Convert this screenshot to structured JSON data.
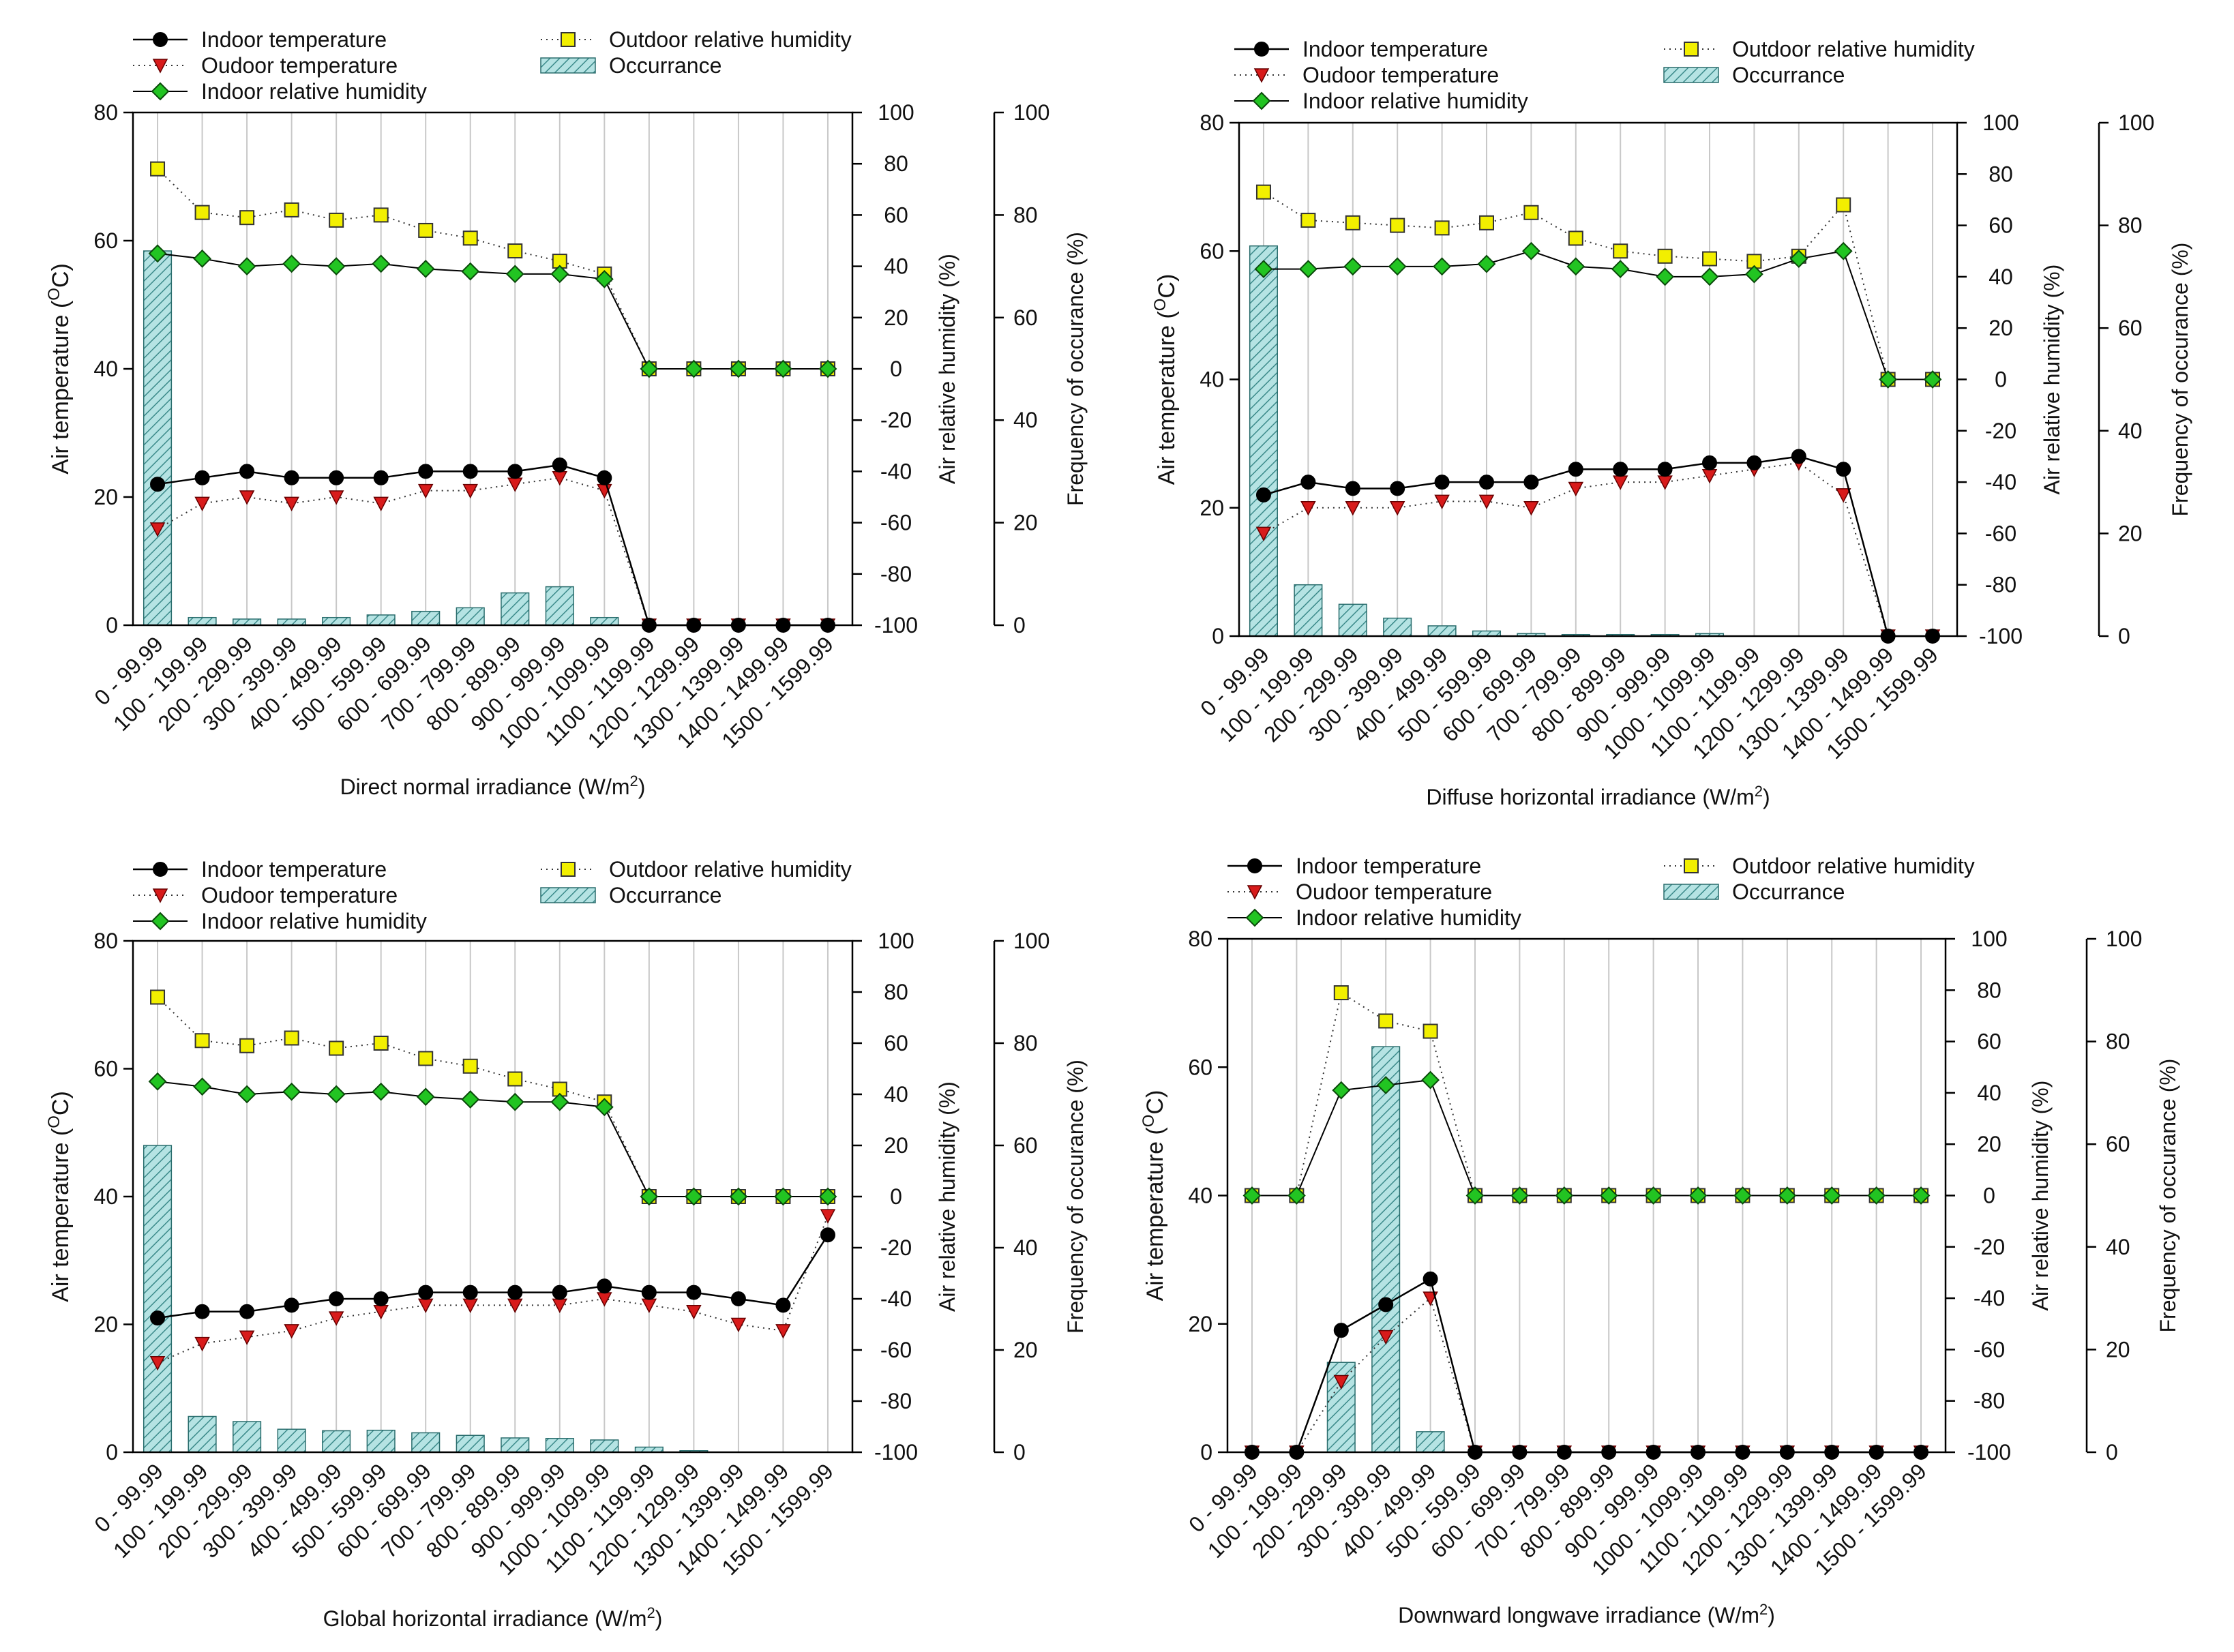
{
  "figure": {
    "legend": {
      "indoor_temp": "Indoor temperature",
      "outdoor_temp": "Oudoor temperature",
      "indoor_rh": "Indoor relative humidity",
      "outdoor_rh": "Outdoor relative humidity",
      "occurrence": "Occurrance"
    },
    "colors": {
      "indoor_temp": "#000000",
      "outdoor_temp": "#d81b1b",
      "indoor_rh": "#22c422",
      "outdoor_rh": "#f2ef00",
      "occurrence": "#b5e3e3",
      "grid": "#c8c8c8"
    }
  },
  "chart_data": [
    {
      "type": "bar",
      "id": "dni",
      "xlabel": "Direct normal irradiance (W/m",
      "xlabel_sup": "2",
      "ylabel_left": "Air temperature (",
      "ylabel_left_sup": "O",
      "ylabel_left_end": "C)",
      "ylabel_mid": "Air relative humidity (%)",
      "ylabel_right": "Frequency of occurance (%)",
      "ylim_temp": [
        0,
        80
      ],
      "ylim_rh": [
        -100,
        100
      ],
      "ylim_freq": [
        0,
        100
      ],
      "ticks_temp": [
        "0",
        "20",
        "40",
        "60",
        "80"
      ],
      "ticks_rh": [
        "-100",
        "-80",
        "-60",
        "-40",
        "-20",
        "0",
        "20",
        "40",
        "60",
        "80",
        "100"
      ],
      "ticks_freq": [
        "0",
        "20",
        "40",
        "60",
        "80",
        "100"
      ],
      "categories": [
        "0 - 99.99",
        "100 - 199.99",
        "200 - 299.99",
        "300 - 399.99",
        "400 - 499.99",
        "500 - 599.99",
        "600 - 699.99",
        "700 - 799.99",
        "800 - 899.99",
        "900 - 999.99",
        "1000 - 1099.99",
        "1100 - 1199.99",
        "1200 - 1299.99",
        "1300 - 1399.99",
        "1400 - 1499.99",
        "1500 - 1599.99"
      ],
      "series": [
        {
          "name": "Indoor temperature",
          "key": "indoor_temp",
          "axis": "temp",
          "values": [
            22,
            23,
            24,
            23,
            23,
            23,
            24,
            24,
            24,
            25,
            23,
            0,
            0,
            0,
            0,
            0
          ]
        },
        {
          "name": "Oudoor temperature",
          "key": "outdoor_temp",
          "axis": "temp",
          "values": [
            15,
            19,
            20,
            19,
            20,
            19,
            21,
            21,
            22,
            23,
            21,
            0,
            0,
            0,
            0,
            0
          ]
        },
        {
          "name": "Indoor relative humidity",
          "key": "indoor_rh",
          "axis": "rh",
          "values": [
            45,
            43,
            40,
            41,
            40,
            41,
            39,
            38,
            37,
            37,
            35,
            0,
            0,
            0,
            0,
            0
          ]
        },
        {
          "name": "Outdoor relative humidity",
          "key": "outdoor_rh",
          "axis": "rh",
          "values": [
            78,
            61,
            59,
            62,
            58,
            60,
            54,
            51,
            46,
            42,
            37,
            0,
            0,
            0,
            0,
            0
          ]
        },
        {
          "name": "Occurrance",
          "key": "occurrence",
          "axis": "freq",
          "values": [
            73,
            1.5,
            1.2,
            1.2,
            1.5,
            2,
            2.7,
            3.4,
            6.3,
            7.5,
            1.5,
            0,
            0,
            0,
            0,
            0
          ]
        }
      ]
    },
    {
      "type": "bar",
      "id": "dhi",
      "xlabel": "Diffuse horizontal irradiance (W/m",
      "xlabel_sup": "2",
      "ylabel_left": "Air temperature (",
      "ylabel_left_sup": "O",
      "ylabel_left_end": "C)",
      "ylabel_mid": "Air relative humidity (%)",
      "ylabel_right": "Frequency of occurance (%)",
      "ylim_temp": [
        0,
        80
      ],
      "ylim_rh": [
        -100,
        100
      ],
      "ylim_freq": [
        0,
        100
      ],
      "ticks_temp": [
        "0",
        "20",
        "40",
        "60",
        "80"
      ],
      "ticks_rh": [
        "-100",
        "-80",
        "-60",
        "-40",
        "-20",
        "0",
        "20",
        "40",
        "60",
        "80",
        "100"
      ],
      "ticks_freq": [
        "0",
        "20",
        "40",
        "60",
        "80",
        "100"
      ],
      "categories": [
        "0 - 99.99",
        "100 - 199.99",
        "200 - 299.99",
        "300 - 399.99",
        "400 - 499.99",
        "500 - 599.99",
        "600 - 699.99",
        "700 - 799.99",
        "800 - 899.99",
        "900 - 999.99",
        "1000 - 1099.99",
        "1100 - 1199.99",
        "1200 - 1299.99",
        "1300 - 1399.99",
        "1400 - 1499.99",
        "1500 - 1599.99"
      ],
      "series": [
        {
          "name": "Indoor temperature",
          "key": "indoor_temp",
          "axis": "temp",
          "values": [
            22,
            24,
            23,
            23,
            24,
            24,
            24,
            26,
            26,
            26,
            27,
            27,
            28,
            26,
            0,
            0
          ]
        },
        {
          "name": "Oudoor temperature",
          "key": "outdoor_temp",
          "axis": "temp",
          "values": [
            16,
            20,
            20,
            20,
            21,
            21,
            20,
            23,
            24,
            24,
            25,
            26,
            27,
            22,
            0,
            0
          ]
        },
        {
          "name": "Indoor relative humidity",
          "key": "indoor_rh",
          "axis": "rh",
          "values": [
            43,
            43,
            44,
            44,
            44,
            45,
            50,
            44,
            43,
            40,
            40,
            41,
            47,
            50,
            0,
            0
          ]
        },
        {
          "name": "Outdoor relative humidity",
          "key": "outdoor_rh",
          "axis": "rh",
          "values": [
            73,
            62,
            61,
            60,
            59,
            61,
            65,
            55,
            50,
            48,
            47,
            46,
            48,
            68,
            0,
            0
          ]
        },
        {
          "name": "Occurrance",
          "key": "occurrence",
          "axis": "freq",
          "values": [
            76,
            10,
            6.2,
            3.5,
            2,
            1,
            0.5,
            0.3,
            0.3,
            0.3,
            0.5,
            0,
            0,
            0,
            0,
            0
          ]
        }
      ]
    },
    {
      "type": "bar",
      "id": "ghi",
      "xlabel": "Global horizontal irradiance (W/m",
      "xlabel_sup": "2",
      "ylabel_left": "Air temperature (",
      "ylabel_left_sup": "O",
      "ylabel_left_end": "C)",
      "ylabel_mid": "Air relative humidity (%)",
      "ylabel_right": "Frequency of occurance (%)",
      "ylim_temp": [
        0,
        80
      ],
      "ylim_rh": [
        -100,
        100
      ],
      "ylim_freq": [
        0,
        100
      ],
      "ticks_temp": [
        "0",
        "20",
        "40",
        "60",
        "80"
      ],
      "ticks_rh": [
        "-100",
        "-80",
        "-60",
        "-40",
        "-20",
        "0",
        "20",
        "40",
        "60",
        "80",
        "100"
      ],
      "ticks_freq": [
        "0",
        "20",
        "40",
        "60",
        "80",
        "100"
      ],
      "categories": [
        "0 - 99.99",
        "100 - 199.99",
        "200 - 299.99",
        "300 - 399.99",
        "400 - 499.99",
        "500 - 599.99",
        "600 - 699.99",
        "700 - 799.99",
        "800 - 899.99",
        "900 - 999.99",
        "1000 - 1099.99",
        "1100 - 1199.99",
        "1200 - 1299.99",
        "1300 - 1399.99",
        "1400 - 1499.99",
        "1500 - 1599.99"
      ],
      "series": [
        {
          "name": "Indoor temperature",
          "key": "indoor_temp",
          "axis": "temp",
          "values": [
            21,
            22,
            22,
            23,
            24,
            24,
            25,
            25,
            25,
            25,
            26,
            25,
            25,
            24,
            23,
            34
          ]
        },
        {
          "name": "Oudoor temperature",
          "key": "outdoor_temp",
          "axis": "temp",
          "values": [
            14,
            17,
            18,
            19,
            21,
            22,
            23,
            23,
            23,
            23,
            24,
            23,
            22,
            20,
            19,
            37
          ]
        },
        {
          "name": "Indoor relative humidity",
          "key": "indoor_rh",
          "axis": "rh",
          "values": [
            45,
            43,
            40,
            41,
            40,
            41,
            39,
            38,
            37,
            37,
            35,
            0,
            0,
            0,
            0,
            0
          ]
        },
        {
          "name": "Outdoor relative humidity",
          "key": "outdoor_rh",
          "axis": "rh",
          "values": [
            78,
            61,
            59,
            62,
            58,
            60,
            54,
            51,
            46,
            42,
            37,
            0,
            0,
            0,
            0,
            0
          ]
        },
        {
          "name": "Occurrance",
          "key": "occurrence",
          "axis": "freq",
          "values": [
            60,
            7,
            6,
            4.5,
            4.2,
            4.3,
            3.8,
            3.3,
            2.8,
            2.7,
            2.4,
            1,
            0.3,
            0,
            0,
            0
          ]
        }
      ]
    },
    {
      "type": "bar",
      "id": "dlw",
      "xlabel": "Downward longwave irradiance (W/m",
      "xlabel_sup": "2",
      "ylabel_left": "Air temperature (",
      "ylabel_left_sup": "O",
      "ylabel_left_end": "C)",
      "ylabel_mid": "Air relative humidity (%)",
      "ylabel_right": "Frequency of occurance (%)",
      "ylim_temp": [
        0,
        80
      ],
      "ylim_rh": [
        -100,
        100
      ],
      "ylim_freq": [
        0,
        100
      ],
      "ticks_temp": [
        "0",
        "20",
        "40",
        "60",
        "80"
      ],
      "ticks_rh": [
        "-100",
        "-80",
        "-60",
        "-40",
        "-20",
        "0",
        "20",
        "40",
        "60",
        "80",
        "100"
      ],
      "ticks_freq": [
        "0",
        "20",
        "40",
        "60",
        "80",
        "100"
      ],
      "categories": [
        "0 - 99.99",
        "100 - 199.99",
        "200 - 299.99",
        "300 - 399.99",
        "400 - 499.99",
        "500 - 599.99",
        "600 - 699.99",
        "700 - 799.99",
        "800 - 899.99",
        "900 - 999.99",
        "1000 - 1099.99",
        "1100 - 1199.99",
        "1200 - 1299.99",
        "1300 - 1399.99",
        "1400 - 1499.99",
        "1500 - 1599.99"
      ],
      "series": [
        {
          "name": "Indoor temperature",
          "key": "indoor_temp",
          "axis": "temp",
          "values": [
            0,
            0,
            19,
            23,
            27,
            0,
            0,
            0,
            0,
            0,
            0,
            0,
            0,
            0,
            0,
            0
          ]
        },
        {
          "name": "Oudoor temperature",
          "key": "outdoor_temp",
          "axis": "temp",
          "values": [
            0,
            0,
            11,
            18,
            24,
            0,
            0,
            0,
            0,
            0,
            0,
            0,
            0,
            0,
            0,
            0
          ]
        },
        {
          "name": "Indoor relative humidity",
          "key": "indoor_rh",
          "axis": "rh",
          "values": [
            0,
            0,
            41,
            43,
            45,
            0,
            0,
            0,
            0,
            0,
            0,
            0,
            0,
            0,
            0,
            0
          ]
        },
        {
          "name": "Outdoor relative humidity",
          "key": "outdoor_rh",
          "axis": "rh",
          "values": [
            0,
            0,
            79,
            68,
            64,
            0,
            0,
            0,
            0,
            0,
            0,
            0,
            0,
            0,
            0,
            0
          ]
        },
        {
          "name": "Occurrance",
          "key": "occurrence",
          "axis": "freq",
          "values": [
            0,
            0,
            17.5,
            79,
            4,
            0,
            0,
            0,
            0,
            0,
            0,
            0,
            0,
            0,
            0,
            0
          ]
        }
      ]
    }
  ]
}
